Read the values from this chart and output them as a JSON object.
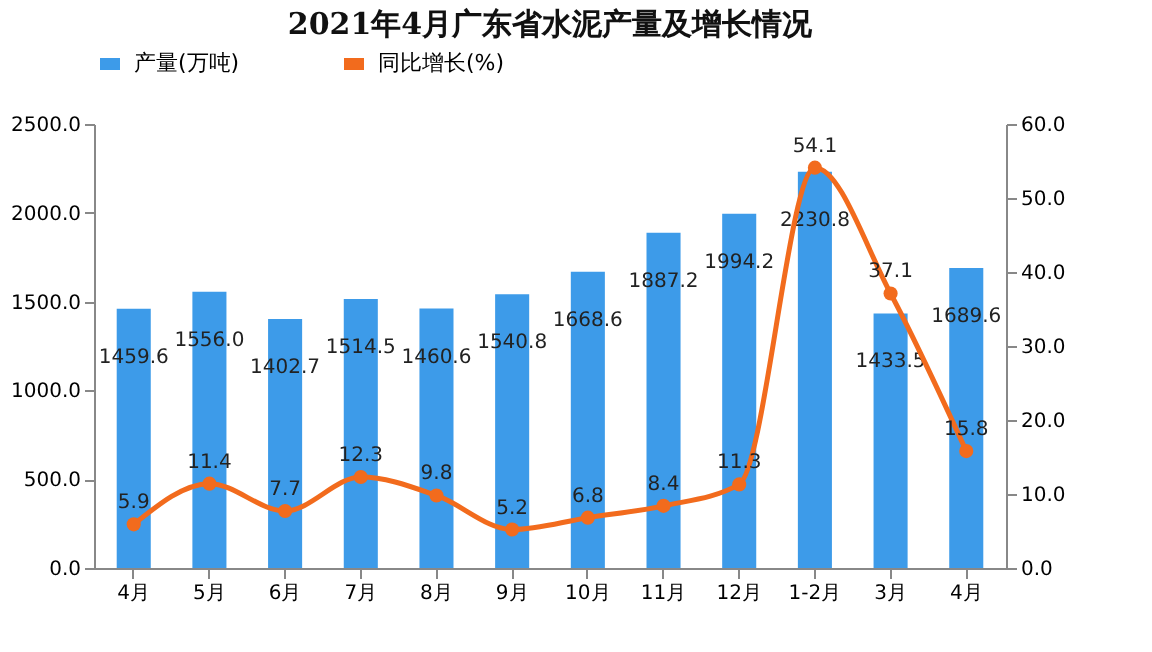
{
  "chart_data": {
    "type": "bar",
    "title": "2021年4月广东省水泥产量及增长情况",
    "categories": [
      "4月",
      "5月",
      "6月",
      "7月",
      "8月",
      "9月",
      "10月",
      "11月",
      "12月",
      "1-2月",
      "3月",
      "4月"
    ],
    "series": [
      {
        "name": "产量(万吨)",
        "color": "#3d9be9",
        "values": [
          1459.6,
          1556.0,
          1402.7,
          1514.5,
          1460.6,
          1540.8,
          1668.6,
          1887.2,
          1994.2,
          2230.8,
          1433.5,
          1689.6
        ],
        "value_labels": [
          "1459.6",
          "1556.0",
          "1402.7",
          "1514.5",
          "1460.6",
          "1540.8",
          "1668.6",
          "1887.2",
          "1994.2",
          "2230.8",
          "1433.5",
          "1689.6"
        ]
      },
      {
        "name": "同比增长(%)",
        "type": "line",
        "axis": "y2",
        "color": "#f26b1d",
        "values": [
          5.9,
          11.4,
          7.7,
          12.3,
          9.8,
          5.2,
          6.8,
          8.4,
          11.3,
          54.1,
          37.1,
          15.8
        ],
        "value_labels": [
          "5.9",
          "11.4",
          "7.7",
          "12.3",
          "9.8",
          "5.2",
          "6.8",
          "8.4",
          "11.3",
          "54.1",
          "37.1",
          "15.8"
        ]
      }
    ],
    "ylim": [
      0,
      2500
    ],
    "yticks": [
      {
        "value": 0,
        "label": "0.0"
      },
      {
        "value": 500,
        "label": "500.0"
      },
      {
        "value": 1000,
        "label": "1000.0"
      },
      {
        "value": 1500,
        "label": "1500.0"
      },
      {
        "value": 2000,
        "label": "2000.0"
      },
      {
        "value": 2500,
        "label": "2500.0"
      }
    ],
    "y2lim": [
      0,
      60
    ],
    "y2ticks": [
      {
        "value": 0,
        "label": "0.0"
      },
      {
        "value": 10,
        "label": "10.0"
      },
      {
        "value": 20,
        "label": "20.0"
      },
      {
        "value": 30,
        "label": "30.0"
      },
      {
        "value": 40,
        "label": "40.0"
      },
      {
        "value": 50,
        "label": "50.0"
      },
      {
        "value": 60,
        "label": "60.0"
      }
    ],
    "legend": "top",
    "marker": "circle",
    "line_style": "solid"
  }
}
